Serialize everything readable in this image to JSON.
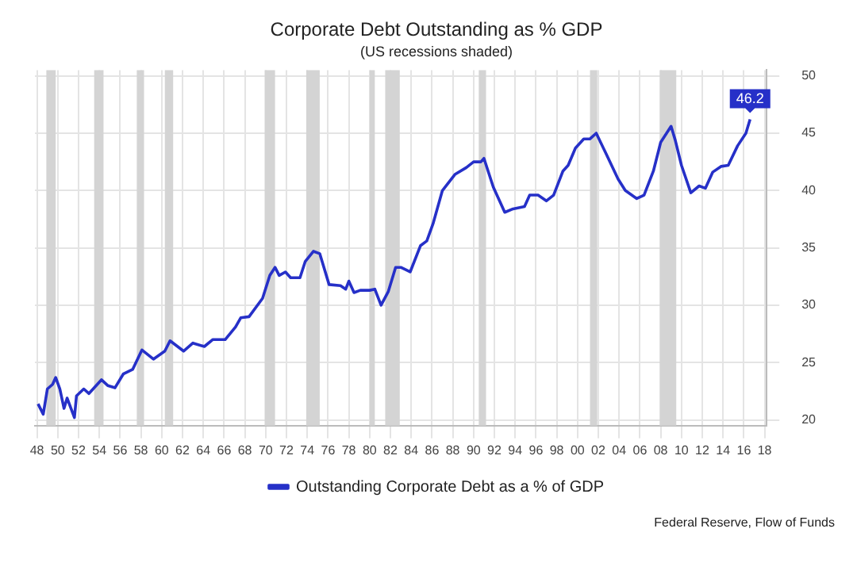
{
  "chart_data": {
    "type": "line",
    "title": "Corporate Debt Outstanding as % GDP",
    "subtitle": "(US recessions shaded)",
    "annotations": [
      "Federal Reserve, Flow of Funds"
    ],
    "xlim": [
      1947.8,
      2018.2
    ],
    "xticks": [
      {
        "value": 1948,
        "label": "48"
      },
      {
        "value": 1950,
        "label": "50"
      },
      {
        "value": 1952,
        "label": "52"
      },
      {
        "value": 1954,
        "label": "54"
      },
      {
        "value": 1956,
        "label": "56"
      },
      {
        "value": 1958,
        "label": "58"
      },
      {
        "value": 1960,
        "label": "60"
      },
      {
        "value": 1962,
        "label": "62"
      },
      {
        "value": 1964,
        "label": "64"
      },
      {
        "value": 1966,
        "label": "66"
      },
      {
        "value": 1968,
        "label": "68"
      },
      {
        "value": 1970,
        "label": "70"
      },
      {
        "value": 1972,
        "label": "72"
      },
      {
        "value": 1974,
        "label": "74"
      },
      {
        "value": 1976,
        "label": "76"
      },
      {
        "value": 1978,
        "label": "78"
      },
      {
        "value": 1980,
        "label": "80"
      },
      {
        "value": 1982,
        "label": "82"
      },
      {
        "value": 1984,
        "label": "84"
      },
      {
        "value": 1986,
        "label": "86"
      },
      {
        "value": 1988,
        "label": "88"
      },
      {
        "value": 1990,
        "label": "90"
      },
      {
        "value": 1992,
        "label": "92"
      },
      {
        "value": 1994,
        "label": "94"
      },
      {
        "value": 1996,
        "label": "96"
      },
      {
        "value": 1998,
        "label": "98"
      },
      {
        "value": 2000,
        "label": "00"
      },
      {
        "value": 2002,
        "label": "02"
      },
      {
        "value": 2004,
        "label": "04"
      },
      {
        "value": 2006,
        "label": "06"
      },
      {
        "value": 2008,
        "label": "08"
      },
      {
        "value": 2010,
        "label": "10"
      },
      {
        "value": 2012,
        "label": "12"
      },
      {
        "value": 2014,
        "label": "14"
      },
      {
        "value": 2016,
        "label": "16"
      },
      {
        "value": 2018,
        "label": "18"
      }
    ],
    "ylim": [
      19.5,
      50.5
    ],
    "yticks": [
      20,
      25,
      30,
      35,
      40,
      45,
      50
    ],
    "grid": true,
    "legend": "bottom",
    "marker": "none",
    "line_style": "solid",
    "bands": [
      {
        "axis": "x",
        "from": 1948.9,
        "to": 1949.8,
        "color": "#d4d4d4"
      },
      {
        "axis": "x",
        "from": 1953.5,
        "to": 1954.4,
        "color": "#d4d4d4"
      },
      {
        "axis": "x",
        "from": 1957.6,
        "to": 1958.3,
        "color": "#d4d4d4"
      },
      {
        "axis": "x",
        "from": 1960.3,
        "to": 1961.1,
        "color": "#d4d4d4"
      },
      {
        "axis": "x",
        "from": 1969.9,
        "to": 1970.9,
        "color": "#d4d4d4"
      },
      {
        "axis": "x",
        "from": 1973.9,
        "to": 1975.2,
        "color": "#d4d4d4"
      },
      {
        "axis": "x",
        "from": 1980.0,
        "to": 1980.5,
        "color": "#d4d4d4"
      },
      {
        "axis": "x",
        "from": 1981.5,
        "to": 1982.9,
        "color": "#d4d4d4"
      },
      {
        "axis": "x",
        "from": 1990.5,
        "to": 1991.2,
        "color": "#d4d4d4"
      },
      {
        "axis": "x",
        "from": 2001.2,
        "to": 2001.9,
        "color": "#d4d4d4"
      },
      {
        "axis": "x",
        "from": 2007.9,
        "to": 2009.5,
        "color": "#d4d4d4"
      }
    ],
    "series": [
      {
        "name": "Outstanding Corporate Debt as a % of GDP",
        "color": "#2630c8",
        "x": [
          1948.1,
          1948.6,
          1949.0,
          1949.5,
          1949.8,
          1950.2,
          1950.6,
          1950.9,
          1951.6,
          1951.8,
          1952.5,
          1953.0,
          1954.2,
          1954.8,
          1955.5,
          1956.3,
          1957.2,
          1958.1,
          1959.2,
          1960.3,
          1960.8,
          1962.1,
          1963.0,
          1964.1,
          1964.9,
          1966.1,
          1967.1,
          1967.6,
          1968.4,
          1969.7,
          1970.4,
          1970.9,
          1971.3,
          1971.9,
          1972.4,
          1973.3,
          1973.8,
          1974.6,
          1975.2,
          1976.1,
          1977.2,
          1977.7,
          1978.0,
          1978.5,
          1979.1,
          1980.0,
          1980.5,
          1981.1,
          1981.8,
          1982.5,
          1983.0,
          1983.9,
          1984.9,
          1985.5,
          1986.1,
          1987.0,
          1988.2,
          1989.3,
          1990.0,
          1990.7,
          1991.0,
          1991.9,
          1993.0,
          1993.8,
          1994.9,
          1995.4,
          1996.2,
          1997.0,
          1997.7,
          1998.6,
          1999.1,
          1999.8,
          2000.6,
          2001.2,
          2001.8,
          2002.7,
          2003.9,
          2004.6,
          2005.7,
          2006.4,
          2007.3,
          2008.0,
          2009.0,
          2009.4,
          2010.0,
          2010.9,
          2011.7,
          2012.3,
          2013.0,
          2013.8,
          2014.5,
          2015.4,
          2016.2,
          2016.6
        ],
        "values": [
          21.4,
          20.5,
          22.7,
          23.1,
          23.7,
          22.7,
          21.0,
          21.9,
          20.2,
          22.1,
          22.7,
          22.3,
          23.5,
          23.0,
          22.8,
          24.0,
          24.4,
          26.1,
          25.3,
          26.0,
          26.9,
          26.0,
          26.7,
          26.4,
          27.0,
          27.0,
          28.1,
          28.9,
          29.0,
          30.6,
          32.6,
          33.3,
          32.6,
          32.9,
          32.4,
          32.4,
          33.8,
          34.7,
          34.5,
          31.8,
          31.7,
          31.4,
          32.1,
          31.1,
          31.3,
          31.3,
          31.4,
          30.0,
          31.2,
          33.3,
          33.3,
          32.9,
          35.2,
          35.6,
          37.1,
          40.0,
          41.4,
          42.0,
          42.5,
          42.5,
          42.8,
          40.3,
          38.1,
          38.4,
          38.6,
          39.6,
          39.6,
          39.1,
          39.6,
          41.7,
          42.2,
          43.7,
          44.5,
          44.5,
          45.0,
          43.3,
          41.0,
          40.0,
          39.3,
          39.6,
          41.7,
          44.2,
          45.6,
          44.4,
          42.2,
          39.8,
          40.4,
          40.2,
          41.6,
          42.1,
          42.2,
          43.9,
          45.0,
          46.2
        ],
        "value_labels": [
          null,
          null,
          null,
          null,
          null,
          null,
          null,
          null,
          null,
          null,
          null,
          null,
          null,
          null,
          null,
          null,
          null,
          null,
          null,
          null,
          null,
          null,
          null,
          null,
          null,
          null,
          null,
          null,
          null,
          null,
          null,
          null,
          null,
          null,
          null,
          null,
          null,
          null,
          null,
          null,
          null,
          null,
          null,
          null,
          null,
          null,
          null,
          null,
          null,
          null,
          null,
          null,
          null,
          null,
          null,
          null,
          null,
          null,
          null,
          null,
          null,
          null,
          null,
          null,
          null,
          null,
          null,
          null,
          null,
          null,
          null,
          null,
          null,
          null,
          null,
          null,
          null,
          null,
          null,
          null,
          null,
          null,
          null,
          null,
          null,
          null,
          null,
          null,
          null,
          null,
          null,
          null,
          null,
          "46.2"
        ]
      }
    ]
  }
}
